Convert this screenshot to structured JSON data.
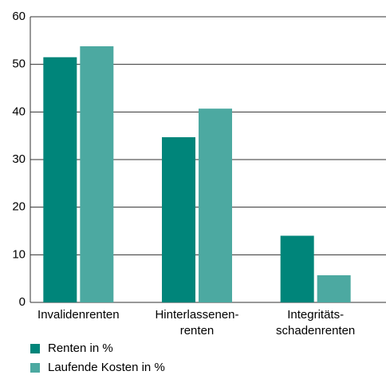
{
  "chart_data": {
    "type": "bar",
    "categories": [
      "Invalidenrenten",
      "Hinterlassenen-\nrenten",
      "Integritäts-\nschadenrenten"
    ],
    "series": [
      {
        "name": "Renten in %",
        "color": "#00857a",
        "values": [
          51.5,
          34.7,
          14.0
        ]
      },
      {
        "name": "Laufende Kosten in %",
        "color": "#4ca9a1",
        "values": [
          53.8,
          40.7,
          5.7
        ]
      }
    ],
    "ylim": [
      0,
      60
    ],
    "yticks": [
      0,
      10,
      20,
      30,
      40,
      50,
      60
    ],
    "grid": true,
    "legend": "bottom-left"
  }
}
